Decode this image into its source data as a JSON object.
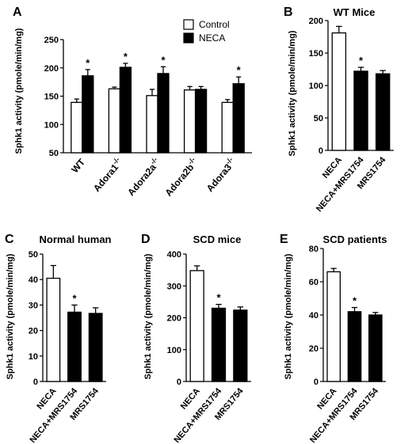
{
  "chart_data": [
    {
      "panel": "A",
      "type": "bar",
      "title": "",
      "ylabel": "Sphk1 activity (pmole/min/mg)",
      "ylim": [
        50,
        250
      ],
      "yticks": [
        50,
        100,
        150,
        200,
        250
      ],
      "categories": [
        "WT",
        "Adora1-/-",
        "Adora2a-/-",
        "Adora2b-/-",
        "Adora3-/-"
      ],
      "series": [
        {
          "name": "Control",
          "fill": "#ffffff",
          "values": [
            139,
            163,
            151,
            161,
            139
          ],
          "errors": [
            6,
            3,
            11,
            6,
            5
          ]
        },
        {
          "name": "NECA",
          "fill": "#000000",
          "values": [
            186,
            201,
            190,
            162,
            172
          ],
          "errors": [
            11,
            7,
            12,
            5,
            12
          ]
        }
      ],
      "significant": [
        [
          false,
          true
        ],
        [
          false,
          true
        ],
        [
          false,
          true
        ],
        [
          false,
          false
        ],
        [
          false,
          true
        ]
      ],
      "legend": {
        "position": "top-right"
      }
    },
    {
      "panel": "B",
      "type": "bar",
      "title": "WT Mice",
      "ylabel": "Sphk1 activity (pmole/min/mg)",
      "ylim": [
        0,
        200
      ],
      "yticks": [
        0,
        50,
        100,
        150,
        200
      ],
      "categories": [
        "NECA",
        "NECA+MRS1754",
        "MRS1754"
      ],
      "values": [
        181,
        122,
        118
      ],
      "errors": [
        10,
        6,
        5
      ],
      "fills": [
        "#ffffff",
        "#000000",
        "#000000"
      ],
      "significant": [
        false,
        true,
        false
      ]
    },
    {
      "panel": "C",
      "type": "bar",
      "title": "Normal human",
      "ylabel": "Sphk1 activity (pmole/min/mg)",
      "ylim": [
        0,
        50
      ],
      "yticks": [
        0,
        10,
        20,
        30,
        40,
        50
      ],
      "categories": [
        "NECA",
        "NECA+MRS1754",
        "MRS1754"
      ],
      "values": [
        40.5,
        27.2,
        26.7
      ],
      "errors": [
        5,
        2.8,
        2.2
      ],
      "fills": [
        "#ffffff",
        "#000000",
        "#000000"
      ],
      "significant": [
        false,
        true,
        false
      ]
    },
    {
      "panel": "D",
      "type": "bar",
      "title": "SCD mice",
      "ylabel": "Sphk1 activity (pmole/min/mg)",
      "ylim": [
        0,
        400
      ],
      "yticks": [
        0,
        100,
        200,
        300,
        400
      ],
      "categories": [
        "NECA",
        "NECA+MRS1754",
        "MRS1754"
      ],
      "values": [
        348,
        230,
        224
      ],
      "errors": [
        15,
        12,
        10
      ],
      "fills": [
        "#ffffff",
        "#000000",
        "#000000"
      ],
      "significant": [
        false,
        true,
        false
      ]
    },
    {
      "panel": "E",
      "type": "bar",
      "title": "SCD patients",
      "ylabel": "Sphk1 activity (pmole/min/mg)",
      "ylim": [
        0,
        80
      ],
      "yticks": [
        0,
        20,
        40,
        60,
        80
      ],
      "categories": [
        "NECA",
        "NECA+MRS1754",
        "MRS1754"
      ],
      "values": [
        66,
        42,
        40
      ],
      "errors": [
        2,
        2.5,
        1.5
      ],
      "fills": [
        "#ffffff",
        "#000000",
        "#000000"
      ],
      "significant": [
        false,
        true,
        false
      ]
    }
  ],
  "significance_marker": "*"
}
